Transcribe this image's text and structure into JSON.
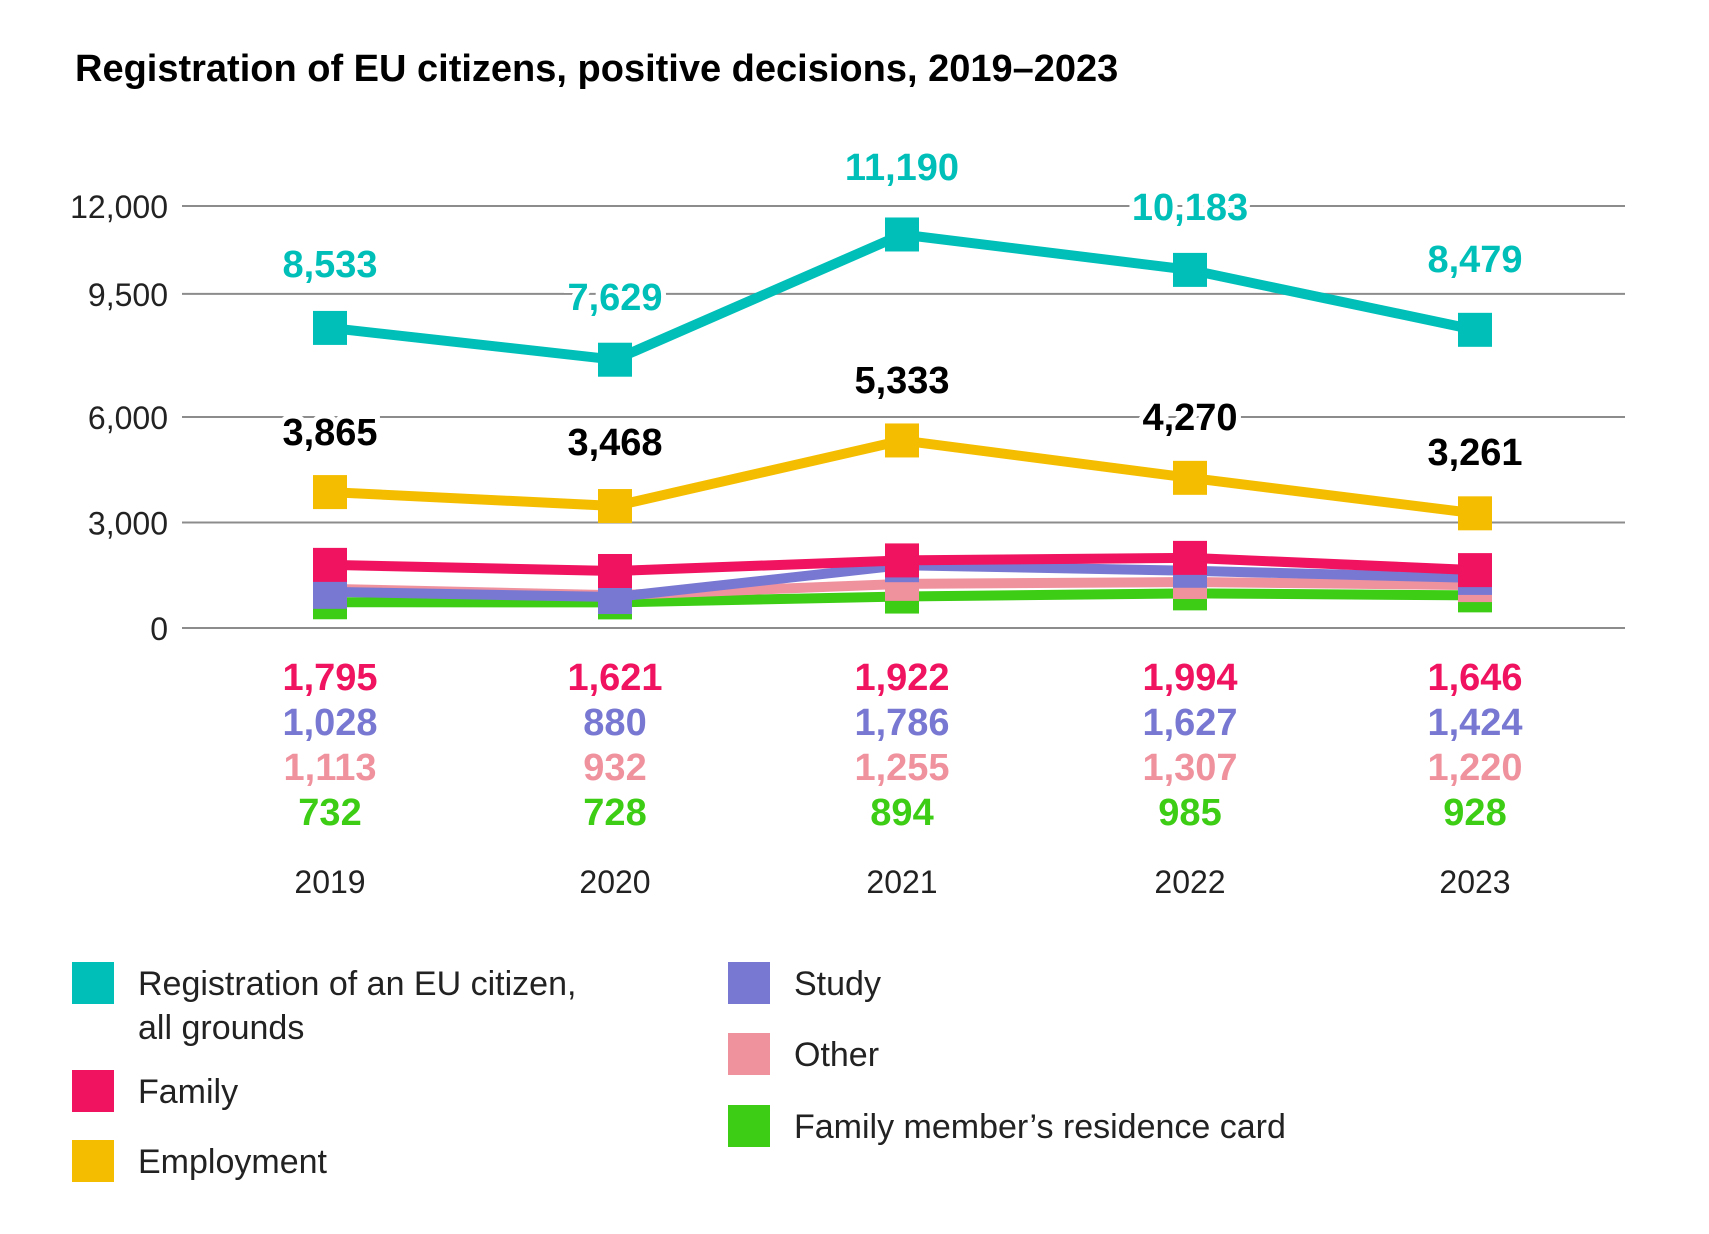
{
  "chart_data": {
    "type": "line",
    "title": "Registration of EU citizens, positive decisions, 2019–2023",
    "categories": [
      "2019",
      "2020",
      "2021",
      "2022",
      "2023"
    ],
    "ylim": [
      0,
      12000
    ],
    "yticks": [
      0,
      3000,
      6000,
      9500,
      12000
    ],
    "ytick_labels": [
      "0",
      "3,000",
      "6,000",
      "9,500",
      "12,000"
    ],
    "grid": true,
    "legend_position": "bottom",
    "series": [
      {
        "name": "Registration of an EU citizen, all grounds",
        "color": "#00bfb8",
        "values": [
          8533,
          7629,
          11190,
          10183,
          8479
        ],
        "labels": [
          "8,533",
          "7,629",
          "11,190",
          "10,183",
          "8,479"
        ],
        "label_color": "#00bfb8",
        "label_position": "above"
      },
      {
        "name": "Employment",
        "color": "#f5bd00",
        "values": [
          3865,
          3468,
          5333,
          4270,
          3261
        ],
        "labels": [
          "3,865",
          "3,468",
          "5,333",
          "4,270",
          "3,261"
        ],
        "label_color": "#000000",
        "label_position": "above"
      },
      {
        "name": "Family",
        "color": "#f0135f",
        "values": [
          1795,
          1621,
          1922,
          1994,
          1646
        ],
        "labels": [
          "1,795",
          "1,621",
          "1,922",
          "1,994",
          "1,646"
        ],
        "label_color": "#f0135f",
        "label_position": "below"
      },
      {
        "name": "Study",
        "color": "#7878d2",
        "values": [
          1028,
          880,
          1786,
          1627,
          1424
        ],
        "labels": [
          "1,028",
          "880",
          "1,786",
          "1,627",
          "1,424"
        ],
        "label_color": "#7878d2",
        "label_position": "below"
      },
      {
        "name": "Other",
        "color": "#f0919e",
        "values": [
          1113,
          932,
          1255,
          1307,
          1220
        ],
        "labels": [
          "1,113",
          "932",
          "1,255",
          "1,307",
          "1,220"
        ],
        "label_color": "#f0919e",
        "label_position": "below"
      },
      {
        "name": "Family member’s residence card",
        "color": "#3ccd14",
        "values": [
          732,
          728,
          894,
          985,
          928
        ],
        "labels": [
          "732",
          "728",
          "894",
          "985",
          "928"
        ],
        "label_color": "#3ccd14",
        "label_position": "below"
      }
    ]
  },
  "legend": {
    "left": [
      {
        "label_lines": [
          "Registration of an EU citizen,",
          "all grounds"
        ],
        "color": "#00bfb8"
      },
      {
        "label_lines": [
          "Family"
        ],
        "color": "#f0135f"
      },
      {
        "label_lines": [
          "Employment"
        ],
        "color": "#f5bd00"
      }
    ],
    "right": [
      {
        "label_lines": [
          "Study"
        ],
        "color": "#7878d2"
      },
      {
        "label_lines": [
          "Other"
        ],
        "color": "#f0919e"
      },
      {
        "label_lines": [
          "Family member’s residence card"
        ],
        "color": "#3ccd14"
      }
    ]
  }
}
